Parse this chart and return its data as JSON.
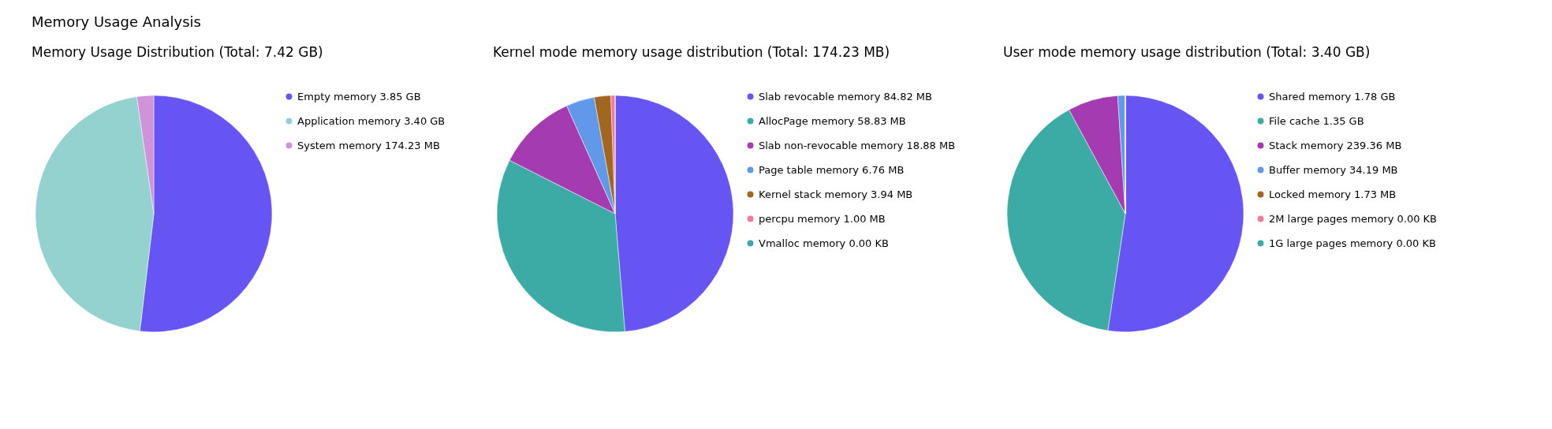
{
  "chart_data": [
    {
      "type": "pie",
      "title": "Memory Usage Distribution (Total: 7.42 GB)",
      "annotations": [
        "Memory Usage Analysis"
      ],
      "legend": "right",
      "categories": [
        "Empty memory 3.85 GB",
        "Application memory 3.40 GB",
        "System memory 174.23 MB"
      ],
      "values": [
        3942.4,
        3481.6,
        174.23
      ],
      "colors": [
        "#6655f2",
        "#93d2cf",
        "#d193d8"
      ]
    },
    {
      "type": "pie",
      "title": "Kernel mode memory usage distribution (Total: 174.23 MB)",
      "legend": "right",
      "categories": [
        "Slab revocable memory 84.82 MB",
        "AllocPage memory 58.83 MB",
        "Slab non-revocable memory 18.88 MB",
        "Page table memory 6.76 MB",
        "Kernel stack memory 3.94 MB",
        "percpu memory 1.00 MB",
        "Vmalloc memory 0.00 KB"
      ],
      "values": [
        84.82,
        58.83,
        18.88,
        6.76,
        3.94,
        1.0,
        0.0
      ],
      "colors": [
        "#6655f2",
        "#3daba5",
        "#a53bb0",
        "#6199e8",
        "#a1661f",
        "#ef7b9b",
        "#3daba5"
      ]
    },
    {
      "type": "pie",
      "title": "User mode memory usage distribution (Total: 3.40 GB)",
      "legend": "right",
      "categories": [
        "Shared memory 1.78 GB",
        "File cache 1.35 GB",
        "Stack memory 239.36 MB",
        "Buffer memory 34.19 MB",
        "Locked memory 1.73 MB",
        "2M large pages memory 0.00 KB",
        "1G large pages memory 0.00 KB"
      ],
      "values": [
        1822.72,
        1382.4,
        239.36,
        34.19,
        1.73,
        0.0,
        0.0
      ],
      "colors": [
        "#6655f2",
        "#3daba5",
        "#a53bb0",
        "#6199e8",
        "#a1661f",
        "#ef7b9b",
        "#3daba5"
      ]
    }
  ]
}
